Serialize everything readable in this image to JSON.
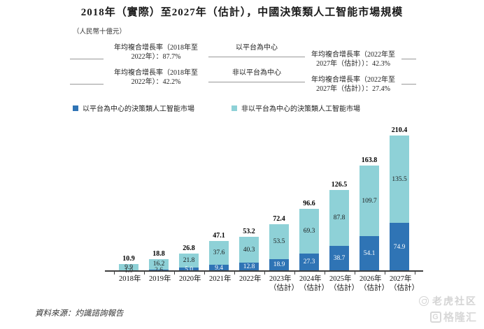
{
  "title": "2018年（實際）至2027年（估計），中國決策類人工智能市場規模",
  "unit_label": "（人民幣十億元）",
  "annotations": [
    {
      "left_line1": "年均複合增長率（2018年至",
      "left_line2": "2022年）：87.7%",
      "center_label": "以平台為中心",
      "right_line1": "年均複合增長率（2022年至",
      "right_line2": "2027年（估計））：42.3%"
    },
    {
      "left_line1": "年均複合增長率（2018年至",
      "left_line2": "2022年）：42.2%",
      "center_label": "非以平台為中心",
      "right_line1": "年均複合增長率（2022年至",
      "right_line2": "2027年（估計））：27.4%"
    }
  ],
  "legend": [
    {
      "label": "以平台為中心的決策類人工智能市場",
      "color": "#2f74b5"
    },
    {
      "label": "非以平台為中心的決策類人工智能市場",
      "color": "#8ed1d7"
    }
  ],
  "chart_data": {
    "type": "bar",
    "stacked": true,
    "categories": [
      "2018年",
      "2019年",
      "2020年",
      "2021年",
      "2022年",
      "2023年",
      "2024年",
      "2025年",
      "2026年",
      "2027年"
    ],
    "category_notes": [
      "",
      "",
      "",
      "",
      "",
      "（估計）",
      "（估計）",
      "（估計）",
      "（估計）",
      "（估計）"
    ],
    "series": [
      {
        "name": "以平台為中心的決策類人工智能市場",
        "color": "#2f74b5",
        "values": [
          1.0,
          2.6,
          5.0,
          9.4,
          12.8,
          18.9,
          27.3,
          38.7,
          54.1,
          74.9
        ],
        "labels": [
          "1.0",
          "2.6",
          "5.0",
          "9.4",
          "12.8",
          "18.9",
          "27.3",
          "38.7",
          "54.1",
          "74.9"
        ]
      },
      {
        "name": "非以平台為中心的決策類人工智能市場",
        "color": "#8ed1d7",
        "values": [
          9.9,
          16.2,
          21.8,
          37.6,
          40.3,
          53.5,
          69.3,
          87.8,
          109.7,
          135.5
        ],
        "labels": [
          "9.9",
          "16.2",
          "21.8",
          "37.6",
          "40.3",
          "53.5",
          "69.3",
          "87.8",
          "109.7",
          "135.5"
        ]
      }
    ],
    "totals": [
      10.9,
      18.8,
      26.8,
      47.1,
      53.2,
      72.4,
      96.6,
      126.5,
      163.8,
      210.4
    ],
    "totals_labels": [
      "10.9",
      "18.8",
      "26.8",
      "47.1",
      "53.2",
      "72.4",
      "96.6",
      "126.5",
      "163.8",
      "210.4"
    ],
    "title": "2018年（實際）至2027年（估計），中國決策類人工智能市場規模",
    "ylabel": "人民幣十億元",
    "ylim": [
      0,
      220
    ],
    "grid": false,
    "legend_position": "top"
  },
  "source": "資料來源：灼識諮詢報告",
  "watermarks": {
    "tiger_community": "老虎社区",
    "gelonghui": "格隆汇",
    "gelonghui_initial": "G"
  }
}
